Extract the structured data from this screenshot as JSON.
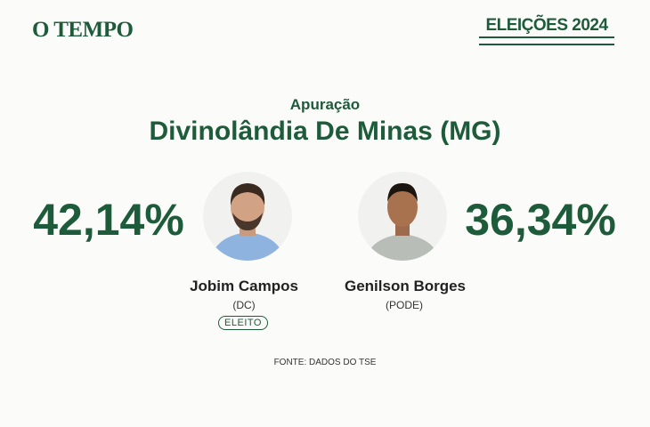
{
  "header": {
    "brand": "O TEMPO",
    "badge": "ELEIÇÕES 2024"
  },
  "subtitle": "Apuração",
  "title": "Divinolândia De Minas (MG)",
  "candidates": [
    {
      "name": "Jobim Campos",
      "party": "(DC)",
      "percent": "42,14%",
      "status": "ELEITO"
    },
    {
      "name": "Genilson Borges",
      "party": "(PODE)",
      "percent": "36,34%"
    }
  ],
  "source": "FONTE: DADOS DO TSE"
}
